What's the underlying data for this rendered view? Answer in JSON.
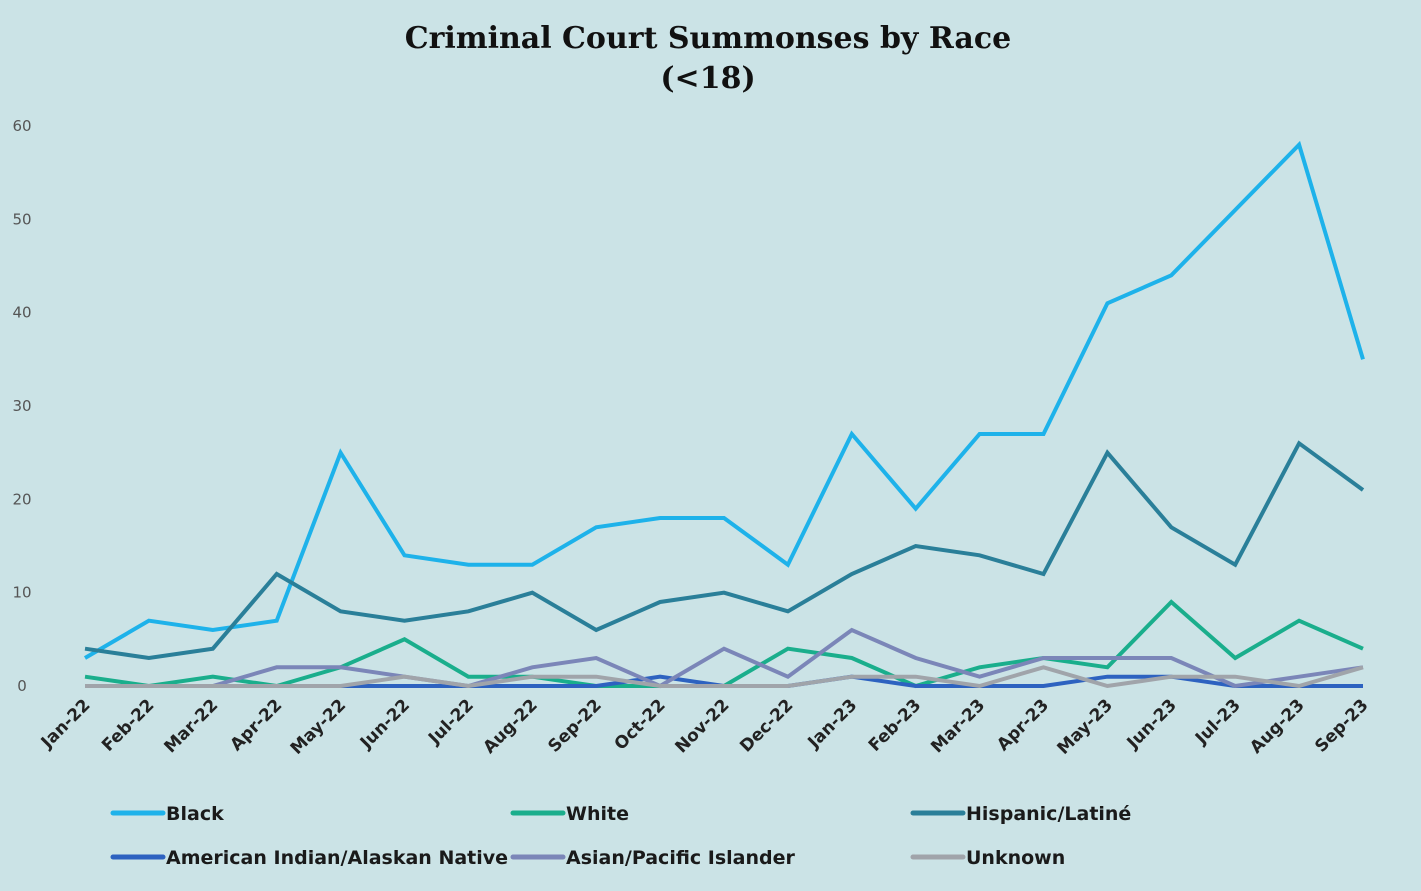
{
  "chart_data": {
    "type": "line",
    "title": "Criminal Court Summonses by Race",
    "subtitle": "(<18)",
    "xlabel": "",
    "ylabel": "",
    "ylim": [
      0,
      60
    ],
    "yticks": [
      0,
      10,
      20,
      30,
      40,
      50,
      60
    ],
    "grid": false,
    "legend_position": "bottom",
    "categories": [
      "Jan-22",
      "Feb-22",
      "Mar-22",
      "Apr-22",
      "May-22",
      "Jun-22",
      "Jul-22",
      "Aug-22",
      "Sep-22",
      "Oct-22",
      "Nov-22",
      "Dec-22",
      "Jan-23",
      "Feb-23",
      "Mar-23",
      "Apr-23",
      "May-23",
      "Jun-23",
      "Jul-23",
      "Aug-23",
      "Sep-23"
    ],
    "series": [
      {
        "name": "Black",
        "color": "#1eb2ea",
        "values": [
          3,
          7,
          6,
          7,
          25,
          14,
          13,
          13,
          17,
          18,
          18,
          13,
          27,
          19,
          27,
          27,
          41,
          44,
          51,
          58,
          35
        ]
      },
      {
        "name": "White",
        "color": "#1aae8c",
        "values": [
          1,
          0,
          1,
          0,
          2,
          5,
          1,
          1,
          0,
          0,
          0,
          4,
          3,
          0,
          2,
          3,
          2,
          9,
          3,
          7,
          4
        ]
      },
      {
        "name": "Hispanic/Latiné",
        "color": "#2a7f99",
        "values": [
          4,
          3,
          4,
          12,
          8,
          7,
          8,
          10,
          6,
          9,
          10,
          8,
          12,
          15,
          14,
          12,
          25,
          17,
          13,
          26,
          21
        ]
      },
      {
        "name": "American Indian/Alaskan Native",
        "color": "#2d62c0",
        "values": [
          0,
          0,
          0,
          0,
          0,
          0,
          0,
          0,
          0,
          1,
          0,
          0,
          1,
          0,
          0,
          0,
          1,
          1,
          0,
          0,
          0
        ]
      },
      {
        "name": "Asian/Pacific Islander",
        "color": "#7b86b8",
        "values": [
          0,
          0,
          0,
          2,
          2,
          1,
          0,
          2,
          3,
          0,
          4,
          1,
          6,
          3,
          1,
          3,
          3,
          3,
          0,
          1,
          2
        ]
      },
      {
        "name": "Unknown",
        "color": "#a0a4aa",
        "values": [
          0,
          0,
          0,
          0,
          0,
          1,
          0,
          1,
          1,
          0,
          0,
          0,
          1,
          1,
          0,
          2,
          0,
          1,
          1,
          0,
          2
        ]
      }
    ]
  }
}
